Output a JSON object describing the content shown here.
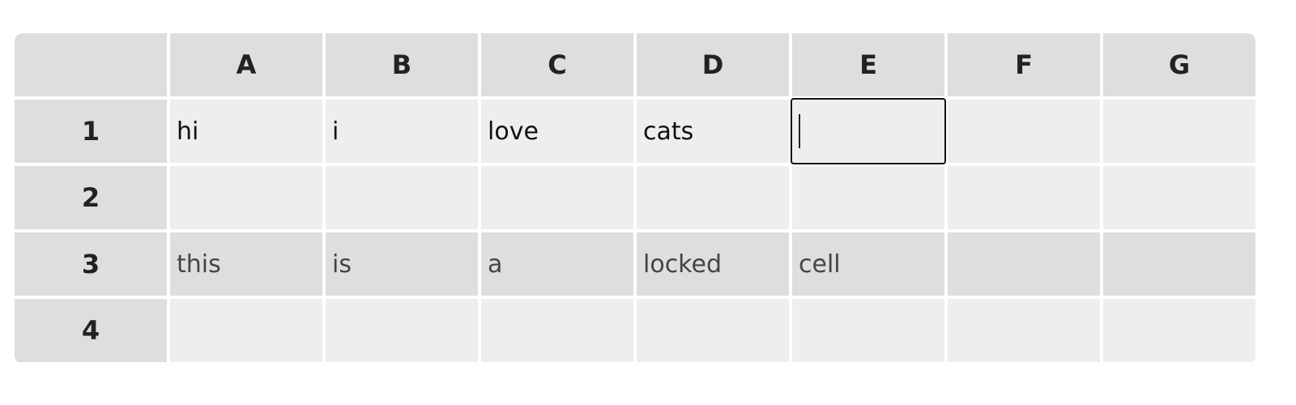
{
  "spreadsheet": {
    "corner": "",
    "columns": [
      "A",
      "B",
      "C",
      "D",
      "E",
      "F",
      "G"
    ],
    "rows": [
      {
        "label": "1",
        "cells": [
          "hi",
          "i",
          "love",
          "cats",
          "",
          "",
          ""
        ]
      },
      {
        "label": "2",
        "cells": [
          "",
          "",
          "",
          "",
          "",
          "",
          ""
        ]
      },
      {
        "label": "3",
        "cells": [
          "this",
          "is",
          "a",
          "locked",
          "cell",
          "",
          ""
        ]
      },
      {
        "label": "4",
        "cells": [
          "",
          "",
          "",
          "",
          "",
          "",
          ""
        ]
      }
    ]
  },
  "colors": {
    "header_bg": "#dedede",
    "cell_bg": "#eeeeee",
    "locked_bg": "#dedede",
    "active_border": "#111111"
  }
}
